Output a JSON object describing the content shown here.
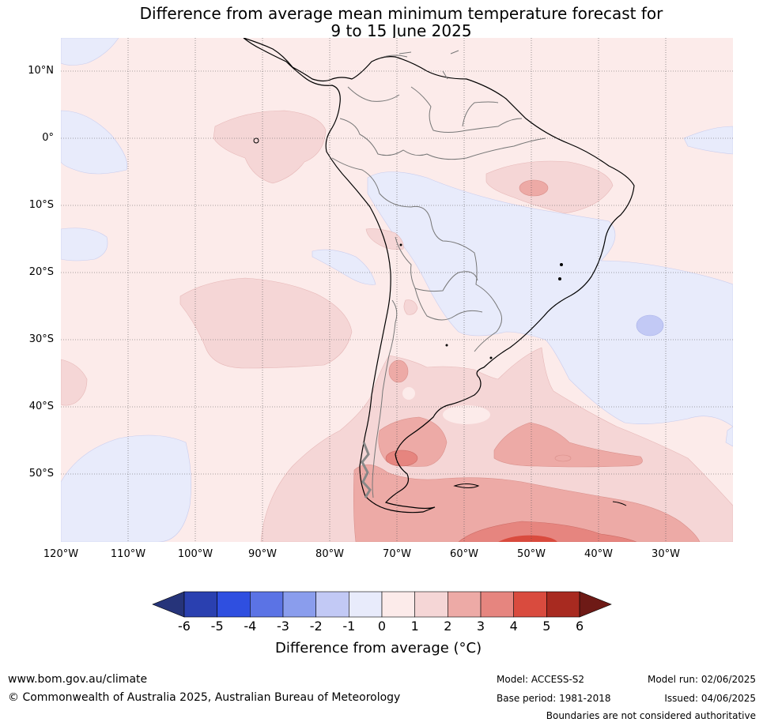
{
  "title": {
    "line1": "Difference from average mean minimum temperature forecast for",
    "line2": "9 to 15 June 2025"
  },
  "map": {
    "lat_labels": [
      "10°N",
      "0°",
      "10°S",
      "20°S",
      "30°S",
      "40°S",
      "50°S"
    ],
    "lon_labels": [
      "120°W",
      "110°W",
      "100°W",
      "90°W",
      "80°W",
      "70°W",
      "60°W",
      "50°W",
      "40°W",
      "30°W"
    ],
    "region": "South America"
  },
  "colorbar": {
    "tick_labels": [
      "-6",
      "-5",
      "-4",
      "-3",
      "-2",
      "-1",
      "0",
      "1",
      "2",
      "3",
      "4",
      "5",
      "6"
    ],
    "colors": [
      "#26347a",
      "#2a40b0",
      "#2f4fe0",
      "#5b73e5",
      "#8a9ded",
      "#c2c9f5",
      "#e8ebfb",
      "#fcebea",
      "#f5d6d6",
      "#edaaa6",
      "#e6857f",
      "#d94b3e",
      "#a82a20",
      "#6e1a16"
    ],
    "label": "Difference from average (°C)"
  },
  "footer": {
    "url": "www.bom.gov.au/climate",
    "copyright": "© Commonwealth of Australia 2025, Australian Bureau of Meteorology",
    "model": "Model: ACCESS-S2",
    "base_period": "Base period: 1981-2018",
    "model_run": "Model run: 02/06/2025",
    "issued": "Issued: 04/06/2025",
    "boundaries": "Boundaries are not considered authoritative"
  }
}
